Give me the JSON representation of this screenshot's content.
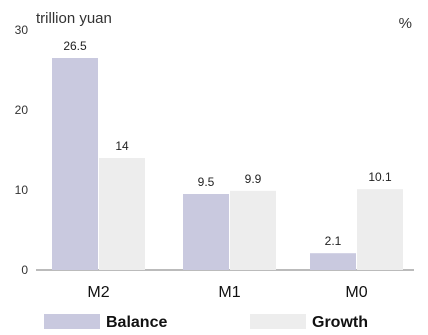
{
  "chart_data": {
    "type": "bar",
    "left_unit_label": "trillion yuan",
    "right_unit_label": "%",
    "categories": [
      "M2",
      "M1",
      "M0"
    ],
    "series": [
      {
        "name": "Balance",
        "values": [
          26.5,
          9.5,
          2.1
        ],
        "data_labels": [
          "26.5",
          "9.5",
          "2.1"
        ]
      },
      {
        "name": "Growth",
        "values": [
          14,
          9.9,
          10.1
        ],
        "data_labels": [
          "14",
          "9.9",
          "10.1"
        ]
      }
    ],
    "y_ticks": [
      "0",
      "10",
      "20",
      "30"
    ],
    "ylim": [
      0,
      30
    ],
    "colors": {
      "Balance": "#c9c9df",
      "Growth": "#ededed"
    },
    "legend_placement": "bottom"
  }
}
